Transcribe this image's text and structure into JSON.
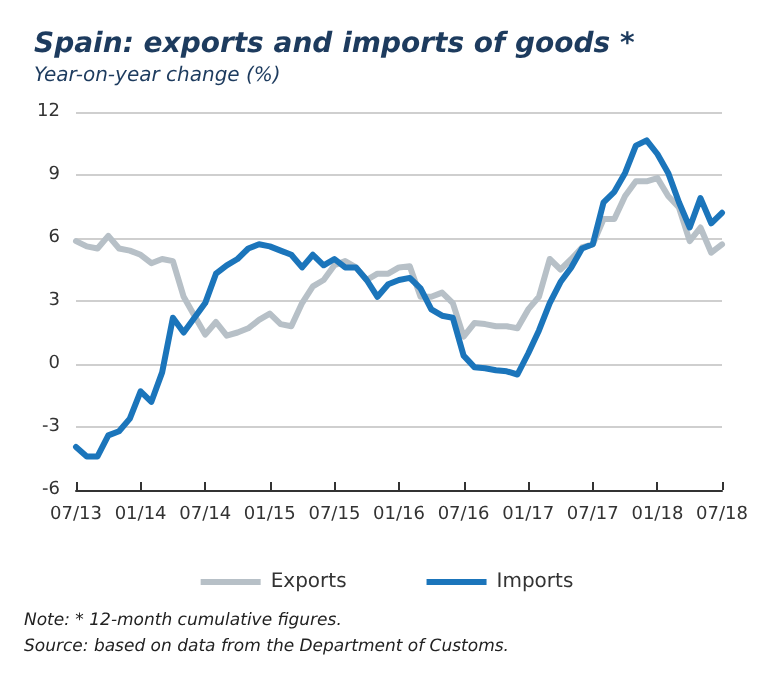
{
  "chart_data": {
    "type": "line",
    "title": "Spain: exports and imports of goods *",
    "subtitle": "Year-on-year change (%)",
    "categories": [
      "07/13",
      null,
      null,
      null,
      null,
      null,
      "01/14",
      null,
      null,
      null,
      null,
      null,
      "07/14",
      null,
      null,
      null,
      null,
      null,
      "01/15",
      null,
      null,
      null,
      null,
      null,
      "07/15",
      null,
      null,
      null,
      null,
      null,
      "01/16",
      null,
      null,
      null,
      null,
      null,
      "07/16",
      null,
      null,
      null,
      null,
      null,
      "01/17",
      null,
      null,
      null,
      null,
      null,
      "07/17",
      null,
      null,
      null,
      null,
      null,
      "01/18",
      null,
      null,
      null,
      null,
      null,
      "07/18"
    ],
    "series": [
      {
        "name": "Exports",
        "color": "#b7c0c7",
        "values": [
          5.85,
          5.6,
          5.5,
          6.1,
          5.5,
          5.4,
          5.2,
          4.8,
          5.0,
          4.9,
          3.2,
          2.3,
          1.4,
          2.0,
          1.35,
          1.5,
          1.7,
          2.1,
          2.4,
          1.9,
          1.8,
          2.9,
          3.7,
          4.0,
          4.7,
          4.9,
          4.6,
          4.0,
          4.3,
          4.3,
          4.6,
          4.65,
          3.2,
          3.2,
          3.4,
          2.9,
          1.3,
          1.95,
          1.9,
          1.8,
          1.8,
          1.7,
          2.6,
          3.2,
          5.0,
          4.5,
          5.0,
          5.55,
          5.7,
          6.9,
          6.9,
          8.0,
          8.7,
          8.7,
          8.85,
          8.0,
          7.45,
          5.85,
          6.5,
          5.3,
          5.7
        ]
      },
      {
        "name": "Imports",
        "color": "#1b75bb",
        "values": [
          -3.95,
          -4.4,
          -4.4,
          -3.4,
          -3.2,
          -2.6,
          -1.3,
          -1.8,
          -0.4,
          2.2,
          1.5,
          2.2,
          2.9,
          4.3,
          4.7,
          5.0,
          5.5,
          5.7,
          5.6,
          5.4,
          5.2,
          4.6,
          5.2,
          4.7,
          5.0,
          4.6,
          4.6,
          4.0,
          3.2,
          3.8,
          4.0,
          4.1,
          3.6,
          2.6,
          2.3,
          2.2,
          0.4,
          -0.15,
          -0.2,
          -0.3,
          -0.35,
          -0.5,
          0.5,
          1.6,
          2.9,
          3.9,
          4.6,
          5.5,
          5.7,
          7.7,
          8.2,
          9.1,
          10.4,
          10.65,
          10.0,
          9.1,
          7.7,
          6.5,
          7.9,
          6.7,
          7.2
        ]
      }
    ],
    "ylim": [
      -6,
      12
    ],
    "yticks": [
      -6,
      -3,
      0,
      3,
      6,
      9,
      12
    ],
    "grid": "y",
    "legend": "bottom",
    "marker": "none",
    "line_style": "solid",
    "annotations": [
      "Note: * 12-month cumulative figures.",
      "Source: based on data from the Department of Customs."
    ]
  }
}
